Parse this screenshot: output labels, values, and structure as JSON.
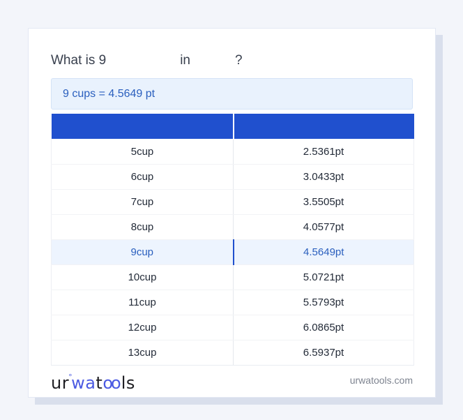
{
  "question": {
    "prefix": "What is 9",
    "connector": "in",
    "suffix": "?"
  },
  "result": {
    "text": "9 cups = 4.5649 pt"
  },
  "table": {
    "header": {
      "from_label": "",
      "to_label": ""
    },
    "rows": [
      {
        "from": "5cup",
        "to": "2.5361pt",
        "highlighted": false
      },
      {
        "from": "6cup",
        "to": "3.0433pt",
        "highlighted": false
      },
      {
        "from": "7cup",
        "to": "3.5505pt",
        "highlighted": false
      },
      {
        "from": "8cup",
        "to": "4.0577pt",
        "highlighted": false
      },
      {
        "from": "9cup",
        "to": "4.5649pt",
        "highlighted": true
      },
      {
        "from": "10cup",
        "to": "5.0721pt",
        "highlighted": false
      },
      {
        "from": "11cup",
        "to": "5.5793pt",
        "highlighted": false
      },
      {
        "from": "12cup",
        "to": "6.0865pt",
        "highlighted": false
      },
      {
        "from": "13cup",
        "to": "6.5937pt",
        "highlighted": false
      }
    ]
  },
  "footer": {
    "logo": {
      "p1": "ur",
      "degree": "°",
      "p2": "wa",
      "p3": "t",
      "p4": "oo",
      "p5": "ls"
    },
    "site": "urwatools.com"
  },
  "colors": {
    "page_background": "#f3f5fa",
    "card_background": "#ffffff",
    "card_shadow": "#d9dfec",
    "header_bg": "#2050ce",
    "result_bg": "#e9f2fd",
    "result_text": "#2a5fbe",
    "highlight_bg": "#edf4fe",
    "highlight_text": "#2a5fbe",
    "body_text": "#232b38",
    "logo_blue": "#4b5ae2",
    "footer_text": "#7e8490"
  }
}
